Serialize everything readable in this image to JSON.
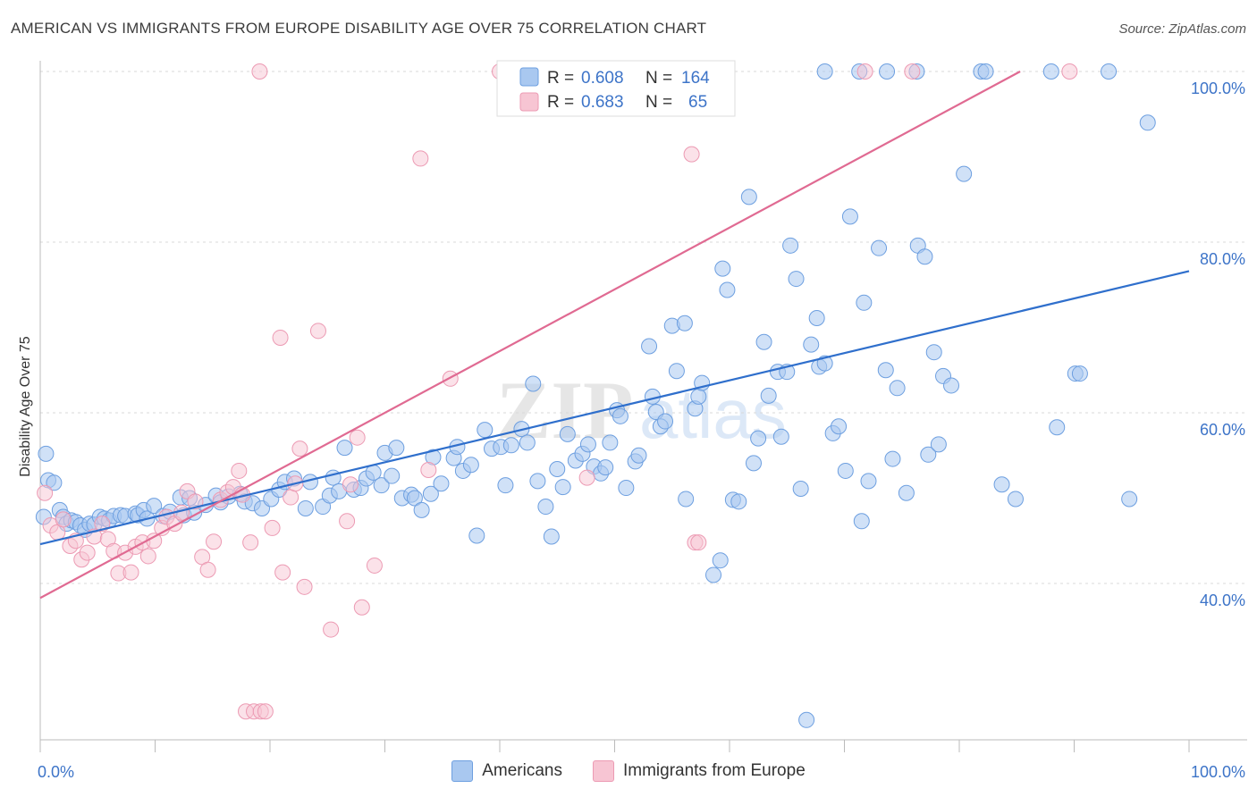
{
  "header": {
    "title": "AMERICAN VS IMMIGRANTS FROM EUROPE DISABILITY AGE OVER 75 CORRELATION CHART",
    "source": "Source: ZipAtlas.com"
  },
  "watermark": {
    "zip": "ZIP",
    "atlas": "atlas"
  },
  "colors": {
    "americans_fill": "#a9c8f0",
    "americans_stroke": "#6d9fe0",
    "americans_line": "#2f6fcc",
    "immigrants_fill": "#f7c5d3",
    "immigrants_stroke": "#ec9ab3",
    "immigrants_line": "#e06a92",
    "tick_text": "#3d74c8",
    "grid": "#d8d8d8"
  },
  "stats_legend": {
    "rows": [
      {
        "r_label": "R =",
        "r_value": "0.608",
        "n_label": "N =",
        "n_value": "164"
      },
      {
        "r_label": "R =",
        "r_value": "0.683",
        "n_label": "N =",
        "n_value": "65"
      }
    ]
  },
  "bottom_legend": {
    "americans": "Americans",
    "immigrants": "Immigrants from Europe"
  },
  "chart_data": {
    "type": "scatter",
    "title": "AMERICAN VS IMMIGRANTS FROM EUROPE DISABILITY AGE OVER 75 CORRELATION CHART",
    "xlabel": "",
    "ylabel": "Disability Age Over 75",
    "xlim": [
      0,
      100
    ],
    "ylim": [
      22,
      102
    ],
    "x_tick_labels": [
      "0.0%",
      "100.0%"
    ],
    "y_ticks": [
      40,
      60,
      80,
      100
    ],
    "y_tick_labels": [
      "40.0%",
      "60.0%",
      "80.0%",
      "100.0%"
    ],
    "grid": true,
    "legend_position": "top-center",
    "series": [
      {
        "name": "Americans",
        "trend": {
          "x": [
            0,
            100
          ],
          "y": [
            44.6,
            76.6
          ]
        },
        "points": [
          [
            0.5,
            55.2
          ],
          [
            0.7,
            52.1
          ],
          [
            1.2,
            51.8
          ],
          [
            1.7,
            48.6
          ],
          [
            2.0,
            47.8
          ],
          [
            2.3,
            47.0
          ],
          [
            2.7,
            47.4
          ],
          [
            3.1,
            47.2
          ],
          [
            3.5,
            46.8
          ],
          [
            3.9,
            46.3
          ],
          [
            4.3,
            47.0
          ],
          [
            4.7,
            46.9
          ],
          [
            5.2,
            47.8
          ],
          [
            5.6,
            47.6
          ],
          [
            6.0,
            47.4
          ],
          [
            6.4,
            47.9
          ],
          [
            7.0,
            48.0
          ],
          [
            7.4,
            47.9
          ],
          [
            8.3,
            48.2
          ],
          [
            8.5,
            48.0
          ],
          [
            9.0,
            48.6
          ],
          [
            9.3,
            47.6
          ],
          [
            9.9,
            49.1
          ],
          [
            10.7,
            47.9
          ],
          [
            11.3,
            48.4
          ],
          [
            12.2,
            50.1
          ],
          [
            12.5,
            48.0
          ],
          [
            13.0,
            50.0
          ],
          [
            13.4,
            48.3
          ],
          [
            14.4,
            49.2
          ],
          [
            15.3,
            50.3
          ],
          [
            15.7,
            49.5
          ],
          [
            16.4,
            50.2
          ],
          [
            17.4,
            50.5
          ],
          [
            17.8,
            49.6
          ],
          [
            18.5,
            49.4
          ],
          [
            19.3,
            48.8
          ],
          [
            20.1,
            49.9
          ],
          [
            20.8,
            51.0
          ],
          [
            21.3,
            51.9
          ],
          [
            22.1,
            52.3
          ],
          [
            23.1,
            48.8
          ],
          [
            23.5,
            51.9
          ],
          [
            24.6,
            49.0
          ],
          [
            25.2,
            50.3
          ],
          [
            25.5,
            52.4
          ],
          [
            26.0,
            50.8
          ],
          [
            26.5,
            55.9
          ],
          [
            27.3,
            51.0
          ],
          [
            27.9,
            51.2
          ],
          [
            28.4,
            52.3
          ],
          [
            29.0,
            53.0
          ],
          [
            29.7,
            51.5
          ],
          [
            30.0,
            55.3
          ],
          [
            30.6,
            52.6
          ],
          [
            31.0,
            55.9
          ],
          [
            31.5,
            50.0
          ],
          [
            32.3,
            50.4
          ],
          [
            32.6,
            50.0
          ],
          [
            33.2,
            48.6
          ],
          [
            34.0,
            50.5
          ],
          [
            34.2,
            54.8
          ],
          [
            34.9,
            51.7
          ],
          [
            36.0,
            54.7
          ],
          [
            36.3,
            56.0
          ],
          [
            36.8,
            53.2
          ],
          [
            37.5,
            53.9
          ],
          [
            38.0,
            45.6
          ],
          [
            38.7,
            58.0
          ],
          [
            39.3,
            55.8
          ],
          [
            40.1,
            56.0
          ],
          [
            40.5,
            51.5
          ],
          [
            41.0,
            56.2
          ],
          [
            41.9,
            58.1
          ],
          [
            42.4,
            56.5
          ],
          [
            42.9,
            63.4
          ],
          [
            43.3,
            52.0
          ],
          [
            44.0,
            49.0
          ],
          [
            44.5,
            45.5
          ],
          [
            45.0,
            53.4
          ],
          [
            45.5,
            51.3
          ],
          [
            45.9,
            57.5
          ],
          [
            46.6,
            54.4
          ],
          [
            47.2,
            55.2
          ],
          [
            47.7,
            56.3
          ],
          [
            48.2,
            53.7
          ],
          [
            48.8,
            52.9
          ],
          [
            49.2,
            53.6
          ],
          [
            49.6,
            56.5
          ],
          [
            50.2,
            60.3
          ],
          [
            50.5,
            59.6
          ],
          [
            51.0,
            51.2
          ],
          [
            51.8,
            54.3
          ],
          [
            52.1,
            55.0
          ],
          [
            53.0,
            67.8
          ],
          [
            53.3,
            61.9
          ],
          [
            53.6,
            60.1
          ],
          [
            54.0,
            58.4
          ],
          [
            54.4,
            59.0
          ],
          [
            55.0,
            70.2
          ],
          [
            55.4,
            64.9
          ],
          [
            56.1,
            70.5
          ],
          [
            56.2,
            49.9
          ],
          [
            57.0,
            60.5
          ],
          [
            57.3,
            61.9
          ],
          [
            57.6,
            63.5
          ],
          [
            58.6,
            41.0
          ],
          [
            59.2,
            42.7
          ],
          [
            59.4,
            76.9
          ],
          [
            59.8,
            74.4
          ],
          [
            60.3,
            49.8
          ],
          [
            60.8,
            49.6
          ],
          [
            61.7,
            85.3
          ],
          [
            62.1,
            54.1
          ],
          [
            62.5,
            57.0
          ],
          [
            63.0,
            68.3
          ],
          [
            63.4,
            62.0
          ],
          [
            64.2,
            64.8
          ],
          [
            64.5,
            57.2
          ],
          [
            65.0,
            64.8
          ],
          [
            65.3,
            79.6
          ],
          [
            65.8,
            75.7
          ],
          [
            66.2,
            51.1
          ],
          [
            66.7,
            24.0
          ],
          [
            67.1,
            68.0
          ],
          [
            67.6,
            71.1
          ],
          [
            67.8,
            65.4
          ],
          [
            68.3,
            65.8
          ],
          [
            69.0,
            57.6
          ],
          [
            69.5,
            58.4
          ],
          [
            70.1,
            53.2
          ],
          [
            70.5,
            83.0
          ],
          [
            71.5,
            47.3
          ],
          [
            71.7,
            72.9
          ],
          [
            72.1,
            52.0
          ],
          [
            73.0,
            79.3
          ],
          [
            73.6,
            65.0
          ],
          [
            74.2,
            54.6
          ],
          [
            74.6,
            62.9
          ],
          [
            75.4,
            50.6
          ],
          [
            76.4,
            79.6
          ],
          [
            77.0,
            78.3
          ],
          [
            77.3,
            55.1
          ],
          [
            77.8,
            67.1
          ],
          [
            78.2,
            56.3
          ],
          [
            78.6,
            64.3
          ],
          [
            79.3,
            63.2
          ],
          [
            80.4,
            88.0
          ],
          [
            81.9,
            100.0
          ],
          [
            82.3,
            100.0
          ],
          [
            83.7,
            51.6
          ],
          [
            84.9,
            49.9
          ],
          [
            88.5,
            58.3
          ],
          [
            90.1,
            64.6
          ],
          [
            88.0,
            100.0
          ],
          [
            90.5,
            64.6
          ],
          [
            93.0,
            100.0
          ],
          [
            94.8,
            49.9
          ],
          [
            96.4,
            94.0
          ],
          [
            68.3,
            100.0
          ],
          [
            71.3,
            100.0
          ],
          [
            73.7,
            100.0
          ],
          [
            76.3,
            100.0
          ],
          [
            0.3,
            47.8
          ]
        ]
      },
      {
        "name": "Immigrants from Europe",
        "trend": {
          "x": [
            0,
            85.3
          ],
          "y": [
            38.3,
            100.0
          ]
        },
        "points": [
          [
            0.4,
            50.6
          ],
          [
            0.9,
            46.8
          ],
          [
            1.5,
            46.0
          ],
          [
            2.0,
            47.5
          ],
          [
            2.6,
            44.4
          ],
          [
            3.1,
            45.0
          ],
          [
            3.6,
            42.8
          ],
          [
            4.1,
            43.6
          ],
          [
            4.7,
            45.5
          ],
          [
            5.4,
            47.0
          ],
          [
            5.9,
            45.2
          ],
          [
            6.4,
            43.8
          ],
          [
            6.8,
            41.2
          ],
          [
            7.4,
            43.6
          ],
          [
            7.9,
            41.3
          ],
          [
            8.3,
            44.3
          ],
          [
            8.9,
            44.8
          ],
          [
            9.4,
            43.2
          ],
          [
            9.9,
            45.0
          ],
          [
            10.6,
            46.5
          ],
          [
            11.0,
            47.8
          ],
          [
            11.7,
            47.0
          ],
          [
            12.3,
            48.3
          ],
          [
            12.8,
            50.8
          ],
          [
            13.5,
            49.6
          ],
          [
            14.1,
            43.1
          ],
          [
            14.6,
            41.6
          ],
          [
            15.1,
            44.9
          ],
          [
            15.7,
            49.8
          ],
          [
            16.3,
            50.7
          ],
          [
            16.8,
            51.3
          ],
          [
            17.3,
            53.2
          ],
          [
            17.6,
            50.4
          ],
          [
            17.9,
            25.0
          ],
          [
            18.3,
            44.8
          ],
          [
            18.6,
            25.0
          ],
          [
            19.2,
            25.0
          ],
          [
            19.6,
            25.0
          ],
          [
            20.2,
            46.5
          ],
          [
            20.9,
            68.8
          ],
          [
            21.1,
            41.3
          ],
          [
            21.8,
            50.1
          ],
          [
            22.2,
            51.7
          ],
          [
            22.6,
            55.8
          ],
          [
            23.0,
            39.6
          ],
          [
            24.2,
            69.6
          ],
          [
            25.3,
            34.6
          ],
          [
            26.7,
            47.3
          ],
          [
            27.0,
            51.6
          ],
          [
            27.6,
            57.1
          ],
          [
            28.0,
            37.2
          ],
          [
            29.1,
            42.1
          ],
          [
            19.1,
            100.0
          ],
          [
            33.1,
            89.8
          ],
          [
            33.8,
            53.3
          ],
          [
            35.7,
            64.0
          ],
          [
            40.0,
            100.0
          ],
          [
            40.6,
            100.0
          ],
          [
            47.6,
            52.4
          ],
          [
            56.7,
            90.3
          ],
          [
            57.0,
            44.8
          ],
          [
            57.3,
            44.8
          ],
          [
            71.8,
            100.0
          ],
          [
            75.9,
            100.0
          ],
          [
            89.6,
            100.0
          ]
        ]
      }
    ]
  }
}
